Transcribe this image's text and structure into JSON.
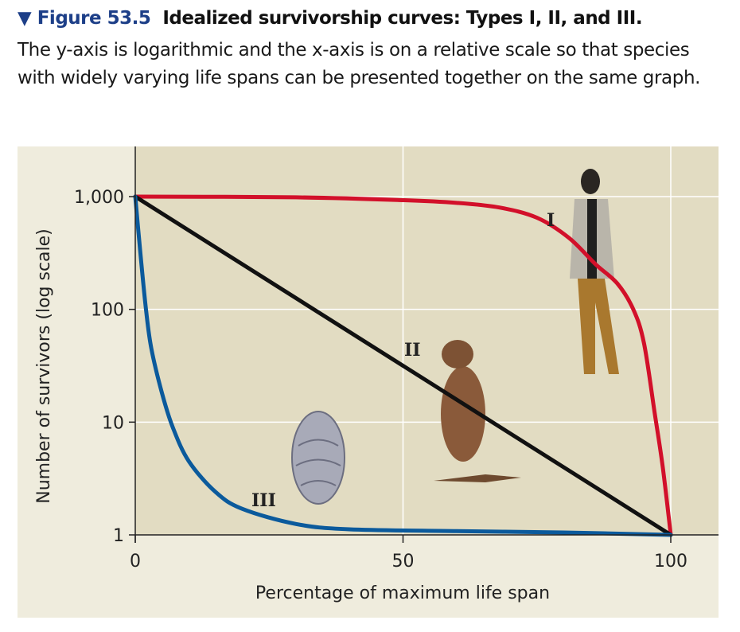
{
  "figure": {
    "marker": "▼",
    "label": "Figure 53.5",
    "title": "Idealized survivorship curves: Types I, II, and III.",
    "caption": "The y-axis is logarithmic and the x-axis is on a relative scale so that species with widely varying life spans can be presented together on the same graph."
  },
  "chart_data": {
    "type": "line",
    "title": "Idealized survivorship curves: Types I, II, and III.",
    "xlabel": "Percentage of maximum life span",
    "ylabel": "Number of survivors (log scale)",
    "xlim": [
      0,
      100
    ],
    "ylim": [
      1,
      1000
    ],
    "yscale": "log",
    "xticks": [
      "0",
      "50",
      "100"
    ],
    "yticks": [
      "1",
      "10",
      "100",
      "1,000"
    ],
    "grid": true,
    "series": [
      {
        "name": "I",
        "color": "#d2102a",
        "x": [
          0,
          30,
          50,
          60,
          68,
          75,
          81,
          86,
          90,
          93,
          95,
          97,
          98.5,
          100
        ],
        "y": [
          1000,
          985,
          930,
          880,
          800,
          650,
          430,
          250,
          170,
          100,
          50,
          12,
          4,
          1
        ]
      },
      {
        "name": "II",
        "color": "#111111",
        "x": [
          0,
          100
        ],
        "y": [
          1000,
          1
        ]
      },
      {
        "name": "III",
        "color": "#0b5a9c",
        "x": [
          0,
          1,
          2,
          3,
          5,
          7,
          10,
          15,
          20,
          30,
          40,
          60,
          80,
          100
        ],
        "y": [
          1000,
          300,
          100,
          45,
          18,
          9,
          4.5,
          2.4,
          1.7,
          1.25,
          1.12,
          1.08,
          1.05,
          1
        ]
      }
    ],
    "annotations": [
      "I",
      "II",
      "III"
    ]
  }
}
